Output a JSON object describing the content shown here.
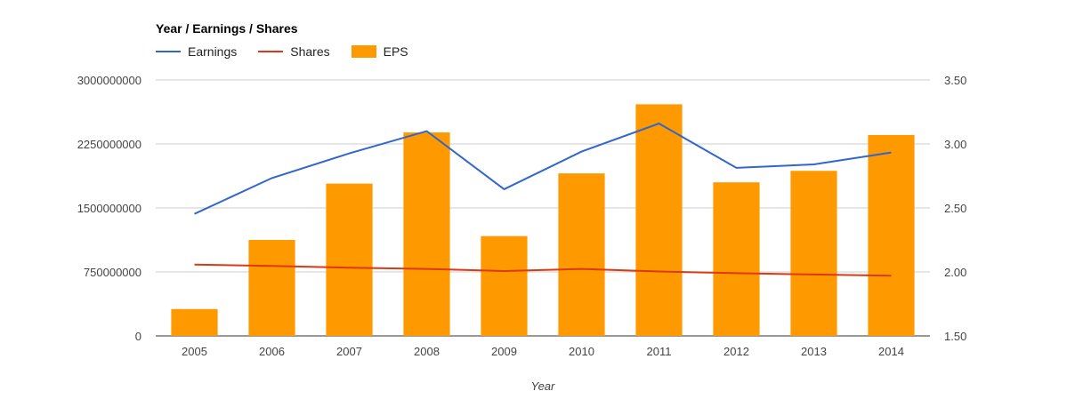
{
  "chart_data": {
    "type": "bar",
    "title": "Year / Earnings / Shares",
    "xlabel": "Year",
    "categories": [
      "2005",
      "2006",
      "2007",
      "2008",
      "2009",
      "2010",
      "2011",
      "2012",
      "2013",
      "2014"
    ],
    "series": [
      {
        "name": "Earnings",
        "type": "line",
        "axis": "left",
        "color": "#3366cc",
        "values": [
          1430000000,
          1850000000,
          2140000000,
          2400000000,
          1720000000,
          2160000000,
          2490000000,
          1970000000,
          2010000000,
          2150000000
        ]
      },
      {
        "name": "Shares",
        "type": "line",
        "axis": "left",
        "color": "#dc3912",
        "values": [
          835000000,
          820000000,
          800000000,
          785000000,
          760000000,
          785000000,
          755000000,
          735000000,
          720000000,
          705000000
        ]
      },
      {
        "name": "EPS",
        "type": "bar",
        "axis": "right",
        "color": "#ff9900",
        "values": [
          1.71,
          2.25,
          2.69,
          3.09,
          2.28,
          2.77,
          3.31,
          2.7,
          2.79,
          3.07
        ]
      }
    ],
    "y_left": {
      "lim": [
        0,
        3000000000
      ],
      "ticks": [
        0,
        750000000,
        1500000000,
        2250000000,
        3000000000
      ],
      "tick_labels": [
        "0",
        "750000000",
        "1500000000",
        "2250000000",
        "3000000000"
      ]
    },
    "y_right": {
      "lim": [
        1.5,
        3.5
      ],
      "ticks": [
        1.5,
        2.0,
        2.5,
        3.0,
        3.5
      ],
      "tick_labels": [
        "1.50",
        "2.00",
        "2.50",
        "3.00",
        "3.50"
      ]
    },
    "grid": true,
    "legend_position": "top-left"
  }
}
